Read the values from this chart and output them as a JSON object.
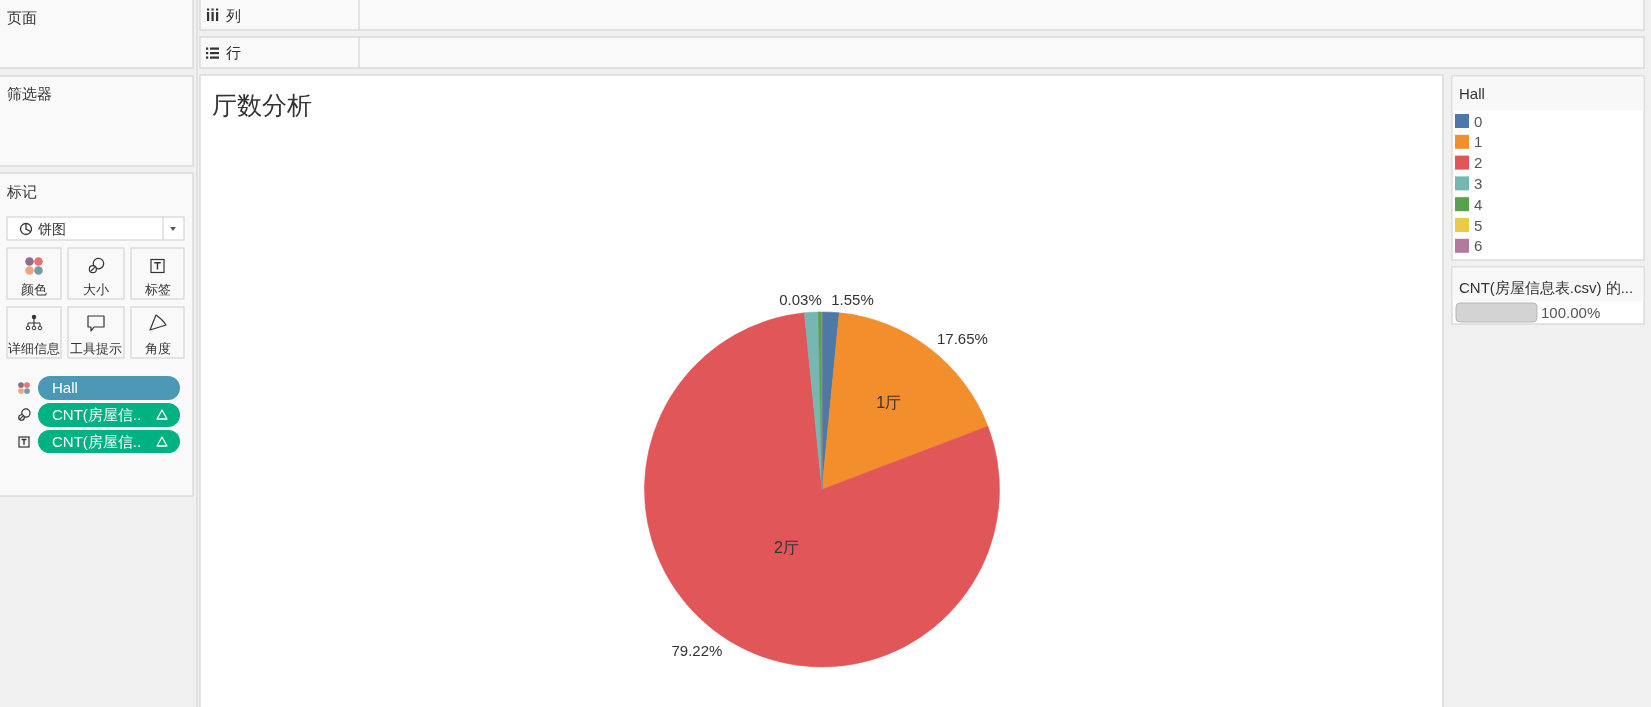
{
  "chart_data": {
    "type": "pie",
    "title": "厅数分析",
    "categories": [
      "0",
      "1",
      "2",
      "3",
      "4",
      "5",
      "6"
    ],
    "values": [
      1.55,
      17.65,
      79.22,
      1.25,
      0.3,
      null,
      0.03
    ],
    "colors": [
      "#4e79a7",
      "#f28e2b",
      "#e15759",
      "#76b7b2",
      "#59a14f",
      "#edc948",
      "#b07aa1"
    ],
    "value_labels": [
      "1.55%",
      "17.65%",
      "79.22%",
      null,
      null,
      null,
      "0.03%"
    ],
    "legend_title": "Hall",
    "legend": "right",
    "annotations": [
      {
        "text": "1厅",
        "x": "1"
      },
      {
        "text": "2厅",
        "x": "2"
      },
      "页面",
      "列",
      "行",
      "筛选器",
      "标记",
      "饼图",
      "颜色",
      "大小",
      "标签",
      "详细信息",
      "工具提示",
      "角度",
      "Hall",
      "CNT(房屋信..",
      "CNT(房屋信..",
      "CNT(房屋信息表.csv) 的...",
      "100.00%"
    ]
  }
}
